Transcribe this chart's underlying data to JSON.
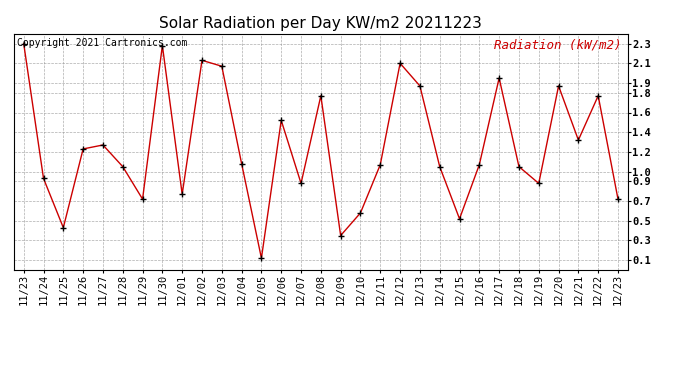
{
  "title": "Solar Radiation per Day KW/m2 20211223",
  "copyright": "Copyright 2021 Cartronics.com",
  "legend_label": "Radiation (kW/m2)",
  "dates": [
    "11/23",
    "11/24",
    "11/25",
    "11/26",
    "11/27",
    "11/28",
    "11/29",
    "11/30",
    "12/01",
    "12/02",
    "12/03",
    "12/04",
    "12/05",
    "12/06",
    "12/07",
    "12/08",
    "12/09",
    "12/10",
    "12/11",
    "12/12",
    "12/13",
    "12/14",
    "12/15",
    "12/16",
    "12/17",
    "12/18",
    "12/19",
    "12/20",
    "12/21",
    "12/22",
    "12/23"
  ],
  "values": [
    2.3,
    0.93,
    0.43,
    1.23,
    1.27,
    1.05,
    0.72,
    2.28,
    0.77,
    2.13,
    2.07,
    1.08,
    0.12,
    1.52,
    0.88,
    1.77,
    0.35,
    0.58,
    1.07,
    2.1,
    1.87,
    1.05,
    0.52,
    1.07,
    1.95,
    1.05,
    0.88,
    1.87,
    1.32,
    1.77,
    0.72
  ],
  "line_color": "#cc0000",
  "marker_color": "#000000",
  "background_color": "#ffffff",
  "grid_color": "#999999",
  "ylim": [
    0.0,
    2.4
  ],
  "yticks": [
    0.1,
    0.3,
    0.5,
    0.7,
    0.9,
    1.0,
    1.2,
    1.4,
    1.6,
    1.8,
    1.9,
    2.1,
    2.3
  ],
  "ytick_labels": [
    "0.1",
    "0.3",
    "0.5",
    "0.7",
    "0.9",
    "1.0",
    "1.2",
    "1.4",
    "1.6",
    "1.8",
    "1.9",
    "2.1",
    "2.3"
  ],
  "title_fontsize": 11,
  "legend_fontsize": 9,
  "copyright_fontsize": 7,
  "tick_fontsize": 7.5,
  "fig_width": 6.9,
  "fig_height": 3.75
}
